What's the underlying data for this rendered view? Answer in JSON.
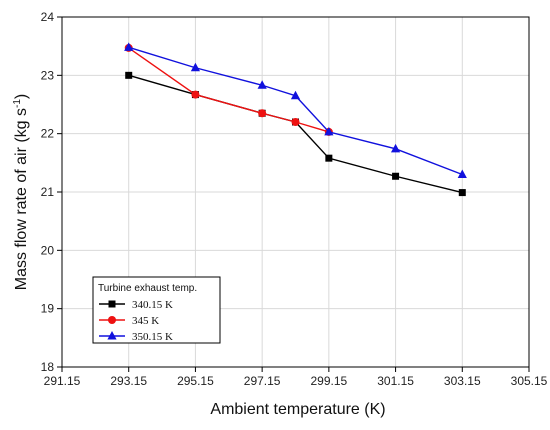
{
  "chart_data": {
    "type": "line",
    "xlabel": "Ambient temperature",
    "xlabel_unit": "(K)",
    "ylabel": "Mass flow rate of air (kg s",
    "ylabel_exp": "-1",
    "ylabel_close": ")",
    "xlim": [
      291.15,
      305.15
    ],
    "ylim": [
      18,
      24
    ],
    "x_ticks": [
      "291.15",
      "293.15",
      "295.15",
      "297.15",
      "299.15",
      "301.15",
      "303.15",
      "305.15"
    ],
    "y_ticks": [
      "18",
      "19",
      "20",
      "21",
      "22",
      "23",
      "24"
    ],
    "grid": true,
    "legend": {
      "title": "Turbine exhaust temp.",
      "placement": "bottom-left"
    },
    "series": [
      {
        "name": "340.15 K",
        "color": "#000000",
        "marker": "square",
        "x": [
          293.15,
          295.15,
          297.15,
          298.15,
          299.15,
          301.15,
          303.15
        ],
        "y": [
          23.0,
          22.67,
          22.35,
          22.2,
          21.58,
          21.27,
          20.99
        ]
      },
      {
        "name": "345 K",
        "color": "#ee1111",
        "marker": "circle",
        "x": [
          293.15,
          295.15,
          297.15,
          298.15,
          299.15
        ],
        "y": [
          23.47,
          22.67,
          22.35,
          22.2,
          22.03
        ]
      },
      {
        "name": "350.15 K",
        "color": "#1111dd",
        "marker": "triangle",
        "x": [
          293.15,
          295.15,
          297.15,
          298.15,
          299.15,
          301.15,
          303.15
        ],
        "y": [
          23.48,
          23.13,
          22.83,
          22.65,
          22.03,
          21.74,
          21.3
        ]
      }
    ]
  }
}
